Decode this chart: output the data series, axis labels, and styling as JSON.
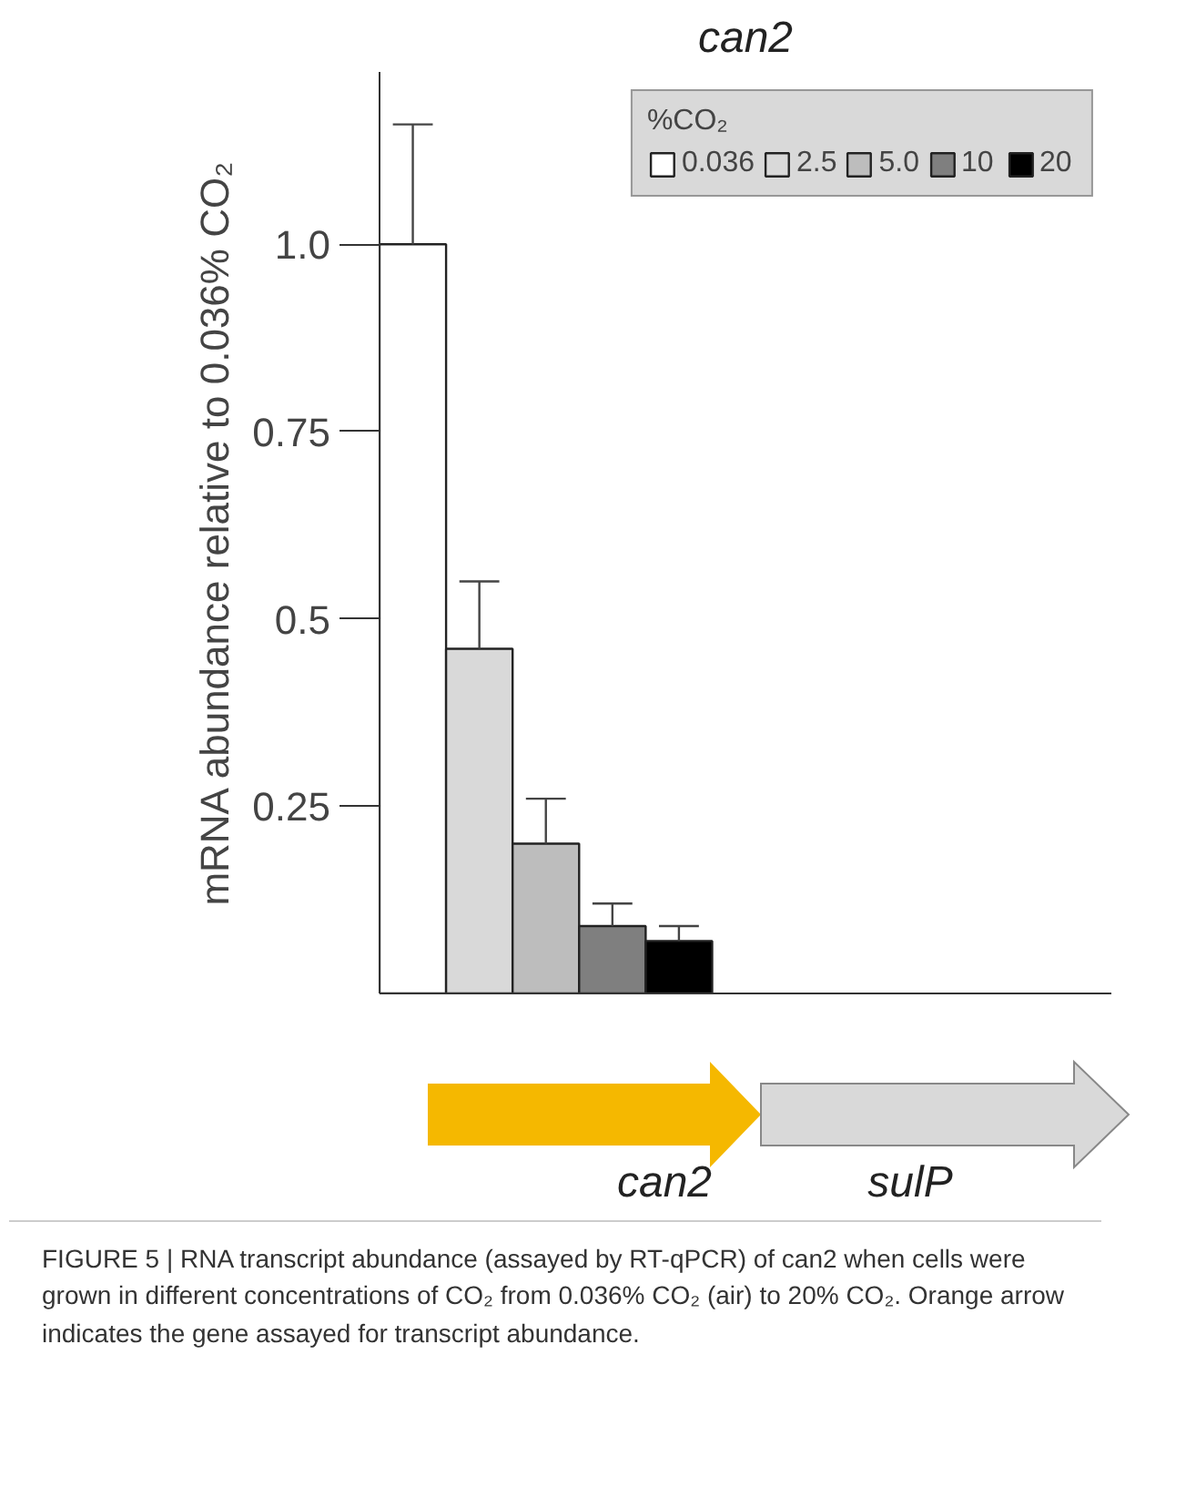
{
  "chart_data": {
    "type": "bar",
    "title": "can2",
    "ylabel": "mRNA abundance relative to 0.036% CO₂",
    "legend_title": "%CO₂",
    "categories": [
      null,
      null,
      null,
      null,
      null,
      null,
      null,
      null,
      null,
      null,
      null
    ],
    "series": [
      {
        "name": "0.036",
        "color": "#ffffff",
        "values": [
          1.0,
          null,
          null,
          null,
          null,
          null,
          null,
          null,
          null,
          null,
          null
        ],
        "errors": [
          [
            1.0,
            1.16
          ],
          null,
          null,
          null,
          null,
          null,
          null,
          null,
          null,
          null,
          null
        ]
      },
      {
        "name": "2.5",
        "color": "#d9d9d9",
        "values": [
          null,
          0.46,
          null,
          null,
          null,
          null,
          null,
          null,
          null,
          null,
          null
        ],
        "errors": [
          null,
          [
            0.46,
            0.55
          ],
          null,
          null,
          null,
          null,
          null,
          null,
          null,
          null,
          null
        ]
      },
      {
        "name": "5.0",
        "color": "#bdbdbd",
        "values": [
          null,
          null,
          0.2,
          null,
          null,
          null,
          null,
          null,
          null,
          null,
          null
        ],
        "errors": [
          null,
          null,
          [
            0.2,
            0.26
          ],
          null,
          null,
          null,
          null,
          null,
          null,
          null,
          null
        ]
      },
      {
        "name": "10",
        "color": "#7f7f7f",
        "values": [
          null,
          null,
          null,
          0.09,
          null,
          null,
          null,
          null,
          null,
          null,
          null
        ],
        "errors": [
          null,
          null,
          null,
          [
            0.09,
            0.12
          ],
          null,
          null,
          null,
          null,
          null,
          null,
          null
        ]
      },
      {
        "name": "20",
        "color": "#000000",
        "values": [
          null,
          null,
          null,
          null,
          0.07,
          null,
          null,
          null,
          null,
          null,
          null
        ],
        "errors": [
          null,
          null,
          null,
          null,
          [
            0.07,
            0.09
          ],
          null,
          null,
          null,
          null,
          null,
          null
        ]
      }
    ],
    "ylim": [
      0,
      1.23
    ],
    "yticks": [
      0.25,
      0.5,
      0.75,
      {
        "value": 1.0,
        "label": "1.0"
      }
    ],
    "tick_labels": "y",
    "grid": false,
    "legend": "top right",
    "annotations": [
      "can2",
      "sulP",
      "FIGURE 5 | RNA transcript abundance (assayed by RT-qPCR) of can2 when cells were grown in different concentrations of CO₂ from 0.036% CO₂ (air) to 20% CO₂. Orange arrow indicates the gene assayed for transcript abundance."
    ]
  }
}
